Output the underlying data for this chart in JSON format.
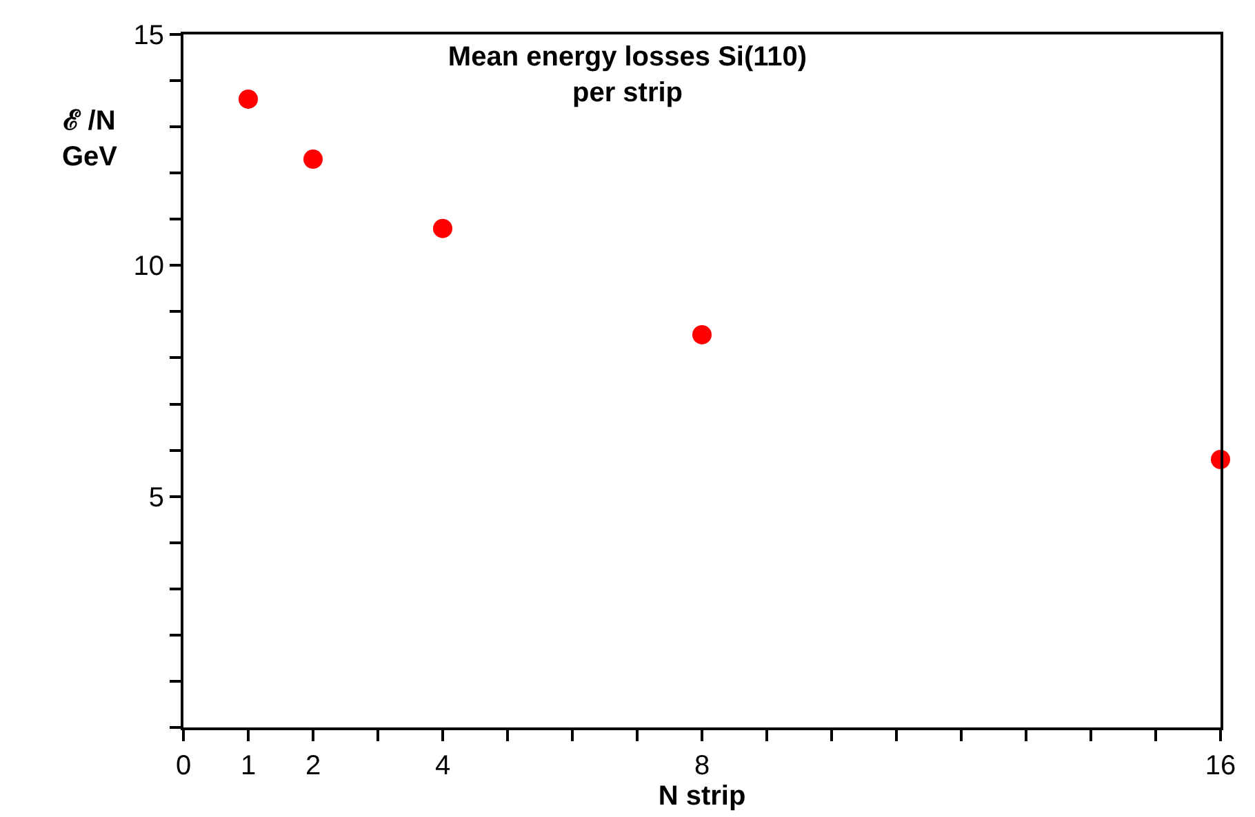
{
  "chart_data": {
    "type": "scatter",
    "title": "Mean energy losses Si(110)\nper strip",
    "xlabel": "N strip",
    "ylabel": "ℰ /N\nGeV",
    "x": [
      1,
      2,
      4,
      8,
      16
    ],
    "series": [
      {
        "color": "#ff0000",
        "values": [
          13.6,
          12.3,
          10.8,
          8.5,
          5.8
        ]
      }
    ],
    "marker": "circle",
    "xlim": [
      0,
      16
    ],
    "xticks": [
      0,
      1,
      2,
      {
        "value": 3,
        "label": null
      },
      4,
      {
        "value": 5,
        "label": null
      },
      {
        "value": 6,
        "label": null
      },
      {
        "value": 7,
        "label": null
      },
      8,
      {
        "value": 9,
        "label": null
      },
      {
        "value": 10,
        "label": null
      },
      {
        "value": 11,
        "label": null
      },
      {
        "value": 12,
        "label": null
      },
      {
        "value": 13,
        "label": null
      },
      {
        "value": 14,
        "label": null
      },
      {
        "value": 15,
        "label": null
      },
      16
    ],
    "ylim": [
      0,
      15
    ],
    "yticks": [
      {
        "value": 0,
        "label": null
      },
      {
        "value": 1,
        "label": null
      },
      {
        "value": 2,
        "label": null
      },
      {
        "value": 3,
        "label": null
      },
      {
        "value": 4,
        "label": null
      },
      5,
      {
        "value": 6,
        "label": null
      },
      {
        "value": 7,
        "label": null
      },
      {
        "value": 8,
        "label": null
      },
      {
        "value": 9,
        "label": null
      },
      10,
      {
        "value": 11,
        "label": null
      },
      {
        "value": 12,
        "label": null
      },
      {
        "value": 13,
        "label": null
      },
      {
        "value": 14,
        "label": null
      },
      15
    ]
  }
}
